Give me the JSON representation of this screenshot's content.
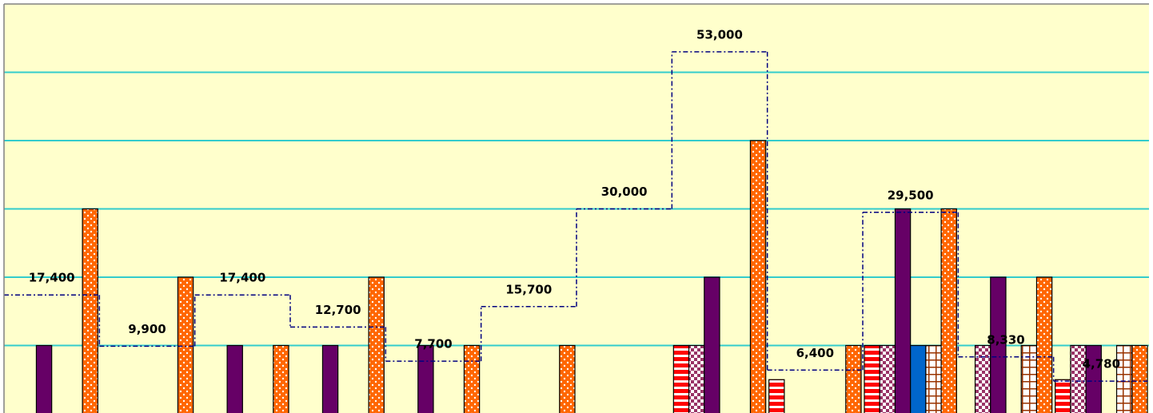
{
  "chart_data": {
    "type": "bar",
    "ylim": [
      0,
      60000
    ],
    "yticks": [
      10000,
      20000,
      30000,
      40000,
      50000
    ],
    "grid": true,
    "background": "#ffffcc",
    "grid_color": "#33cccc",
    "series": [
      {
        "color": "#ff0000",
        "pattern": "hstripes",
        "values": [
          null,
          null,
          null,
          null,
          null,
          null,
          null,
          10000,
          5000,
          10000,
          null,
          5000
        ]
      },
      {
        "color": "#993366",
        "pattern": "checker",
        "values": [
          null,
          null,
          null,
          null,
          null,
          null,
          null,
          10000,
          null,
          10000,
          10000,
          10000
        ]
      },
      {
        "color": "#660066",
        "values": [
          10000,
          null,
          10000,
          10000,
          10000,
          null,
          null,
          20000,
          null,
          30000,
          20000,
          10000
        ]
      },
      {
        "color": "#0066cc",
        "values": [
          null,
          null,
          null,
          null,
          null,
          null,
          null,
          null,
          null,
          10000,
          null,
          null
        ]
      },
      {
        "color": "#993300",
        "pattern": "grid",
        "values": [
          null,
          null,
          null,
          null,
          null,
          null,
          null,
          null,
          null,
          10000,
          10000,
          10000
        ]
      },
      {
        "color": "#ff6600",
        "pattern": "dots",
        "values": [
          30000,
          20000,
          10000,
          20000,
          10000,
          10000,
          null,
          40000,
          10000,
          30000,
          20000,
          10000
        ]
      }
    ],
    "step_line": {
      "color": "#000080",
      "values": [
        17400,
        9900,
        17400,
        12700,
        7700,
        15700,
        30000,
        53000,
        6400,
        29500,
        8330,
        4780
      ],
      "value_labels": [
        "17,400",
        "9,900",
        "17,400",
        "12,700",
        "7,700",
        "15,700",
        "30,000",
        "53,000",
        "6,400",
        "29,500",
        "8,330",
        "4,780"
      ]
    }
  }
}
